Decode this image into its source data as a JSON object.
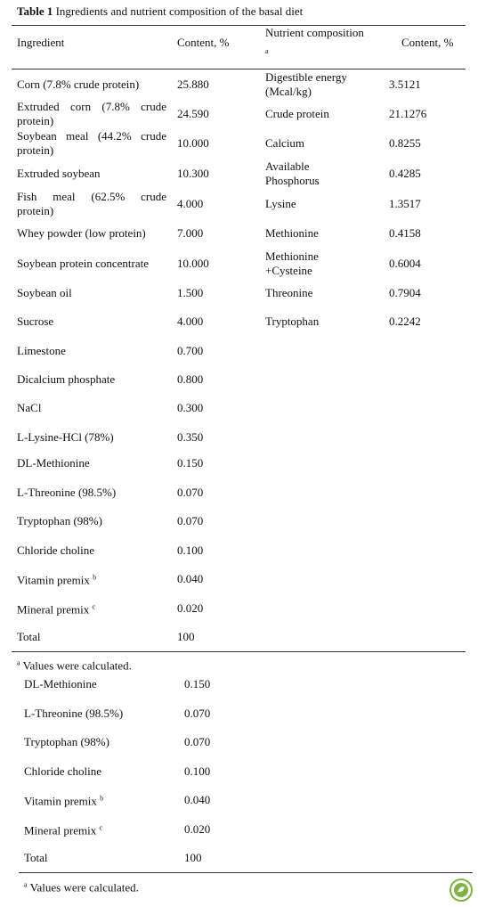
{
  "title": {
    "label": "Table 1",
    "text": "Ingredients and nutrient composition of the basal diet"
  },
  "header": {
    "ingredient": "Ingredient",
    "content": "Content, %",
    "nutrient": "Nutrient composition",
    "nutrient_note": "a",
    "nutrient_content": "Content, %"
  },
  "ingredients": [
    {
      "name": "Corn (7.8% crude protein)",
      "content": "25.880"
    },
    {
      "name": "Extruded corn (7.8% crude protein)",
      "content": "24.590"
    },
    {
      "name": "Soybean meal (44.2% crude protein)",
      "content": "10.000"
    },
    {
      "name": "Extruded soybean",
      "content": "10.300"
    },
    {
      "name": "Fish meal (62.5% crude protein)",
      "content": "4.000"
    },
    {
      "name": "Whey powder (low protein)",
      "content": "7.000"
    },
    {
      "name": "Soybean protein concentrate",
      "content": "10.000"
    },
    {
      "name": "Soybean oil",
      "content": "1.500"
    },
    {
      "name": "Sucrose",
      "content": "4.000"
    },
    {
      "name": "Limestone",
      "content": "0.700"
    },
    {
      "name": "Dicalcium phosphate",
      "content": "0.800"
    },
    {
      "name": "NaCl",
      "content": "0.300"
    },
    {
      "name": "L-Lysine-HCl (78%)",
      "content": "0.350"
    },
    {
      "name": "DL-Methionine",
      "content": "0.150"
    },
    {
      "name": "L-Threonine (98.5%)",
      "content": "0.070"
    },
    {
      "name": "Tryptophan (98%)",
      "content": "0.070"
    },
    {
      "name": "Chloride choline",
      "content": "0.100"
    },
    {
      "name": "Vitamin premix",
      "note": "b",
      "content": "0.040"
    },
    {
      "name": "Mineral premix",
      "note": "c",
      "content": "0.020"
    },
    {
      "name": "Total",
      "content": "100"
    }
  ],
  "nutrients": [
    {
      "name": "Digestible energy (Mcal/kg)",
      "content": "3.5121"
    },
    {
      "name": "Crude protein",
      "content": "21.1276"
    },
    {
      "name": "Calcium",
      "content": "0.8255"
    },
    {
      "name": "Available Phosphorus",
      "content": "0.4285"
    },
    {
      "name": "Lysine",
      "content": "1.3517"
    },
    {
      "name": "Methionine",
      "content": "0.4158"
    },
    {
      "name": "Methionine +Cysteine",
      "content": "0.6004"
    },
    {
      "name": "Threonine",
      "content": "0.7904"
    },
    {
      "name": "Tryptophan",
      "content": "0.2242"
    }
  ],
  "footnote": {
    "mark": "a",
    "text": "Values were calculated."
  },
  "repeat": {
    "rows": [
      {
        "name": "DL-Methionine",
        "content": "0.150"
      },
      {
        "name": "L-Threonine (98.5%)",
        "content": "0.070"
      },
      {
        "name": "Tryptophan (98%)",
        "content": "0.070"
      },
      {
        "name": "Chloride choline",
        "content": "0.100"
      },
      {
        "name": "Vitamin premix",
        "note": "b",
        "content": "0.040"
      },
      {
        "name": "Mineral premix",
        "note": "c",
        "content": "0.020"
      },
      {
        "name": "Total",
        "content": "100"
      }
    ],
    "footnote": {
      "mark": "a",
      "text": "Values were calculated."
    }
  }
}
